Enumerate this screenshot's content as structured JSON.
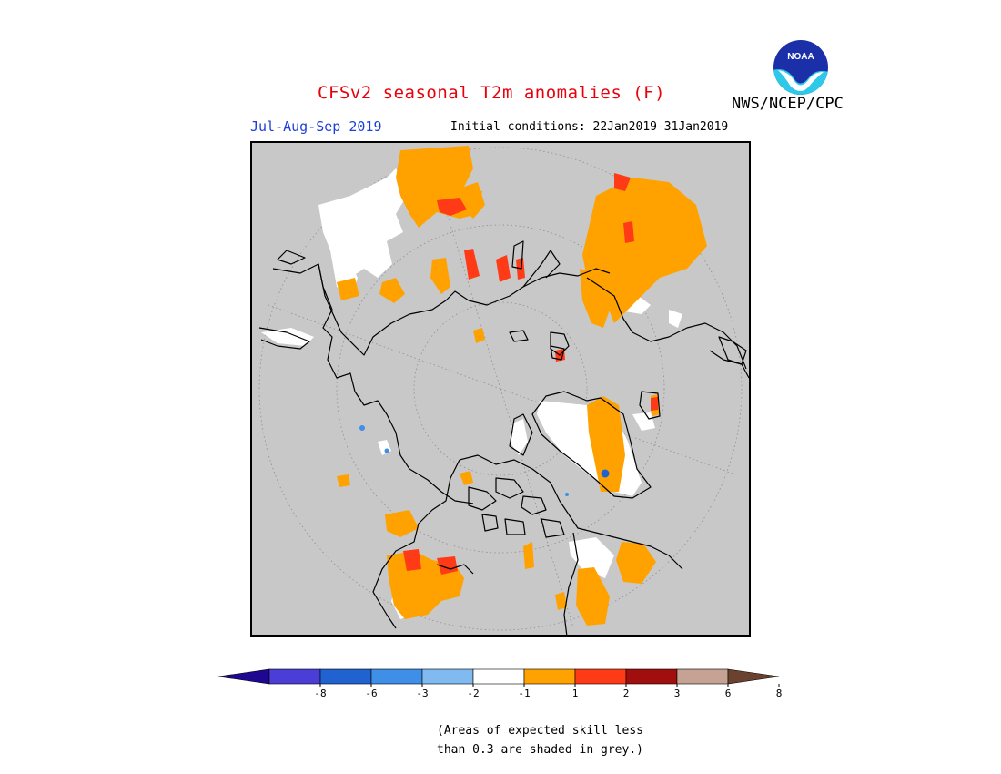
{
  "header": {
    "title": "CFSv2 seasonal T2m anomalies (F)",
    "season": "Jul-Aug-Sep 2019",
    "initial_conditions": "Initial conditions: 22Jan2019-31Jan2019",
    "organization": "NWS/NCEP/CPC",
    "logo_text": "NOAA"
  },
  "colorbar": {
    "tick_labels": [
      "-8",
      "-6",
      "-3",
      "-2",
      "-1",
      "1",
      "2",
      "3",
      "6",
      "8"
    ],
    "colors": [
      "#1e0891",
      "#4b3ed6",
      "#1f62d0",
      "#3f8ee8",
      "#80baf0",
      "#ffffff",
      "#ffa200",
      "#ff3a16",
      "#a10e0e",
      "#c6a295",
      "#6b4130"
    ]
  },
  "note": {
    "line1": "(Areas of expected skill less",
    "line2": "than 0.3 are shaded in grey.)"
  },
  "colors": {
    "grey": "#c8c8c8",
    "title": "#e8000b",
    "season": "#1f3fd6"
  }
}
